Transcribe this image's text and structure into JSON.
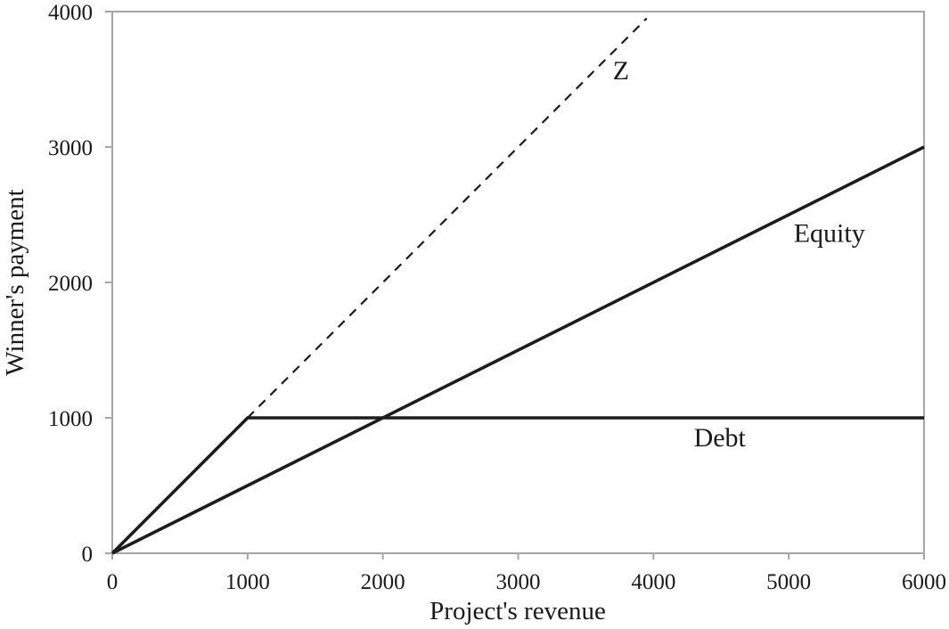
{
  "chart_data": {
    "type": "line",
    "title": "",
    "xlabel": "Project's revenue",
    "ylabel": "Winner's payment",
    "xlim": [
      0,
      6000
    ],
    "ylim": [
      0,
      4000
    ],
    "x_ticks": [
      "0",
      "1000",
      "2000",
      "3000",
      "4000",
      "5000",
      "6000"
    ],
    "x_tick_values": [
      0,
      1000,
      2000,
      3000,
      4000,
      5000,
      6000
    ],
    "y_ticks": [
      "0",
      "1000",
      "2000",
      "3000",
      "4000"
    ],
    "y_tick_values": [
      0,
      1000,
      2000,
      3000,
      4000
    ],
    "grid": false,
    "legend_position": "none",
    "series": [
      {
        "name": "Debt",
        "style": "solid",
        "points": [
          [
            0,
            0
          ],
          [
            1000,
            1000
          ],
          [
            6000,
            1000
          ]
        ],
        "description": "min(revenue, 1000): rises with slope 1 to 1000 then flat"
      },
      {
        "name": "Equity",
        "style": "solid",
        "points": [
          [
            0,
            0
          ],
          [
            6000,
            3000
          ]
        ],
        "description": "0.5 x revenue"
      },
      {
        "name": "Z",
        "style": "dashed",
        "points": [
          [
            1000,
            1000
          ],
          [
            3950,
            3950
          ]
        ],
        "description": "45-degree extension of the debt line, clipped at plot top"
      }
    ],
    "annotations": [
      {
        "text": "Z",
        "x": 3760,
        "y": 3500
      },
      {
        "text": "Equity",
        "x": 5300,
        "y": 2300
      },
      {
        "text": "Debt",
        "x": 4490,
        "y": 790
      }
    ],
    "colors": {
      "line": "#1c1c1c",
      "axis": "#a6a6a6",
      "text": "#1a1a1a",
      "background": "#ffffff"
    }
  }
}
